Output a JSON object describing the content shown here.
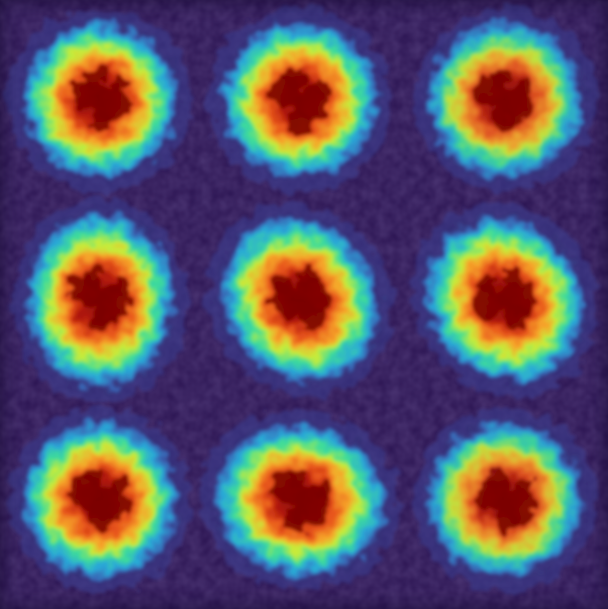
{
  "image": {
    "kind": "heatmap-grid",
    "rows": 3,
    "cols": 3,
    "colormap": "turbo",
    "colors": {
      "background": "#2c1550",
      "low": "#3a2a7a",
      "mid_low": "#29a7d8",
      "mid": "#a6e84a",
      "mid_high": "#f5a623",
      "high": "#d8361a",
      "peak": "#7a0403"
    },
    "blobs": [
      {
        "label": "blob-r1c1",
        "intensity": 1.0,
        "shape": "round"
      },
      {
        "label": "blob-r1c2",
        "intensity": 1.0,
        "shape": "round"
      },
      {
        "label": "blob-r1c3",
        "intensity": 0.95,
        "shape": "round"
      },
      {
        "label": "blob-r2c1",
        "intensity": 1.0,
        "shape": "tall"
      },
      {
        "label": "blob-r2c2",
        "intensity": 1.0,
        "shape": "diagonal"
      },
      {
        "label": "blob-r2c3",
        "intensity": 1.0,
        "shape": "diagonal"
      },
      {
        "label": "blob-r3c1",
        "intensity": 1.0,
        "shape": "round"
      },
      {
        "label": "blob-r3c2",
        "intensity": 1.0,
        "shape": "wedge"
      },
      {
        "label": "blob-r3c3",
        "intensity": 0.95,
        "shape": "round"
      }
    ]
  }
}
